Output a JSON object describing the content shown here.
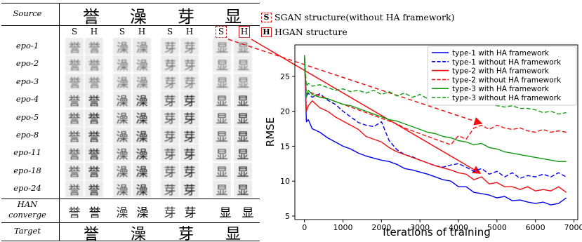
{
  "table": {
    "source_label": "Source",
    "source_chars": [
      "誉",
      "澡",
      "芽",
      "显"
    ],
    "col_heads": [
      "S",
      "H",
      "S",
      "H",
      "S",
      "H",
      "S",
      "H"
    ],
    "rows": [
      {
        "label": "epo-1"
      },
      {
        "label": "epo-2"
      },
      {
        "label": "epo-3"
      },
      {
        "label": "epo-4"
      },
      {
        "label": "epo-5"
      },
      {
        "label": "epo-8"
      },
      {
        "label": "epo-11"
      },
      {
        "label": "epo-18"
      },
      {
        "label": "epo-24"
      }
    ],
    "converge_label_1": "HAN",
    "converge_label_2": "converge",
    "target_label": "Target",
    "target_chars": [
      "誉",
      "澡",
      "芽",
      "显"
    ]
  },
  "top_legend": {
    "s_box": "S",
    "s_text": "SGAN structure(without HA framework)",
    "h_box": "H",
    "h_text": "HGAN structure"
  },
  "colors": {
    "blue": "#0000ee",
    "red": "#ee1111",
    "green": "#119911",
    "highlight": "#d01818"
  },
  "chart_data": {
    "type": "line",
    "xlabel": "Iterations of training",
    "ylabel": "RMSE",
    "xlim": [
      -250,
      7100
    ],
    "ylim": [
      4.5,
      29.5
    ],
    "xticks": [
      "0",
      "1000",
      "2000",
      "3000",
      "4000",
      "5000",
      "6000",
      "7000"
    ],
    "yticks": [
      "5",
      "10",
      "15",
      "20",
      "25"
    ],
    "legend_position": "top-right",
    "series": [
      {
        "name": "type-1 with HA framework",
        "color": "blue",
        "dash": "solid",
        "x": [
          0,
          50,
          100,
          200,
          400,
          600,
          800,
          1000,
          1200,
          1400,
          1600,
          1800,
          2000,
          2200,
          2400,
          2600,
          2800,
          3000,
          3200,
          3400,
          3600,
          3800,
          4000,
          4200,
          4400,
          4600,
          4800,
          5000,
          5200,
          5400,
          5600,
          5800,
          6000,
          6200,
          6400,
          6600,
          6800
        ],
        "y": [
          28,
          18.5,
          18.8,
          17.5,
          17.0,
          16.2,
          15.6,
          15.0,
          14.6,
          14.0,
          13.6,
          13.3,
          13.0,
          12.8,
          12.4,
          11.8,
          11.6,
          11.3,
          11.0,
          10.6,
          10.2,
          10.0,
          9.2,
          9.2,
          8.4,
          8.2,
          8.0,
          7.6,
          7.8,
          7.2,
          7.3,
          7.0,
          6.8,
          7.0,
          6.6,
          6.8,
          7.6
        ]
      },
      {
        "name": "type-1 without HA framework",
        "color": "blue",
        "dash": "dashed",
        "x": [
          0,
          50,
          100,
          200,
          400,
          600,
          800,
          1000,
          1200,
          1400,
          1600,
          1800,
          2000,
          2200,
          2400,
          2600,
          2800,
          3000,
          3200,
          3400,
          3600,
          3800,
          4000,
          4200,
          4400,
          4600,
          4800,
          5000,
          5200,
          5400,
          5600,
          5800,
          6000,
          6200,
          6400,
          6600,
          6800
        ],
        "y": [
          28,
          22.0,
          22.6,
          22.0,
          22.5,
          21.6,
          21.0,
          20.0,
          19.2,
          18.4,
          18.0,
          17.8,
          18.5,
          15.8,
          14.5,
          13.8,
          13.5,
          13.0,
          12.6,
          12.2,
          12.0,
          12.3,
          12.5,
          12.0,
          11.4,
          11.8,
          11.0,
          11.4,
          10.6,
          11.2,
          10.4,
          10.8,
          10.6,
          11.0,
          10.6,
          11.2,
          10.6
        ]
      },
      {
        "name": "type-2 with HA framework",
        "color": "red",
        "dash": "solid",
        "x": [
          0,
          50,
          100,
          200,
          400,
          600,
          800,
          1000,
          1200,
          1400,
          1600,
          1800,
          2000,
          2200,
          2400,
          2600,
          2800,
          3000,
          3200,
          3400,
          3600,
          3800,
          4000,
          4200,
          4400,
          4600,
          4800,
          5000,
          5200,
          5400,
          5600,
          5800,
          6000,
          6200,
          6400,
          6600,
          6800
        ],
        "y": [
          28,
          20.0,
          20.8,
          21.5,
          20.5,
          20.0,
          19.2,
          18.6,
          18.0,
          17.4,
          16.4,
          16.0,
          15.6,
          14.8,
          14.2,
          13.8,
          13.4,
          13.0,
          12.6,
          12.2,
          11.9,
          11.6,
          11.2,
          11.0,
          10.2,
          10.6,
          9.6,
          9.8,
          9.2,
          9.2,
          8.8,
          9.2,
          8.6,
          8.8,
          8.6,
          9.2,
          8.4
        ]
      },
      {
        "name": "type-2 without HA framework",
        "color": "red",
        "dash": "dashed",
        "x": [
          0,
          50,
          100,
          200,
          400,
          600,
          800,
          1000,
          1200,
          1400,
          1600,
          1800,
          2000,
          2200,
          2400,
          2600,
          2800,
          3000,
          3200,
          3400,
          3600,
          3800,
          4000,
          4200,
          4400,
          4600,
          4800,
          5000,
          5200,
          5400,
          5600,
          5800,
          6000,
          6200,
          6400,
          6600,
          6800
        ],
        "y": [
          28,
          22.4,
          22.8,
          22.6,
          22.2,
          21.8,
          21.4,
          21.0,
          20.6,
          20.2,
          19.8,
          19.4,
          19.0,
          18.6,
          18.2,
          17.6,
          17.2,
          16.8,
          16.4,
          16.0,
          15.6,
          15.2,
          16.5,
          16.0,
          17.6,
          18.0,
          17.4,
          18.0,
          17.6,
          17.4,
          17.6,
          17.2,
          17.0,
          17.4,
          17.0,
          17.2,
          17.0
        ]
      },
      {
        "name": "type-3 with HA framework",
        "color": "green",
        "dash": "solid",
        "x": [
          0,
          50,
          100,
          200,
          400,
          600,
          800,
          1000,
          1200,
          1400,
          1600,
          1800,
          2000,
          2200,
          2400,
          2600,
          2800,
          3000,
          3200,
          3400,
          3600,
          3800,
          4000,
          4200,
          4400,
          4600,
          4800,
          5000,
          5200,
          5400,
          5600,
          5800,
          6000,
          6200,
          6400,
          6600,
          6800
        ],
        "y": [
          28,
          22.0,
          23.0,
          22.4,
          22.0,
          21.8,
          21.4,
          21.0,
          20.8,
          20.4,
          20.0,
          19.6,
          19.2,
          18.8,
          18.6,
          18.2,
          17.8,
          17.4,
          17.0,
          16.8,
          16.4,
          16.2,
          15.8,
          15.6,
          15.2,
          15.4,
          14.8,
          14.6,
          14.2,
          14.0,
          13.8,
          13.6,
          13.4,
          13.2,
          13.0,
          12.8,
          12.8
        ]
      },
      {
        "name": "type-3 without HA framework",
        "color": "green",
        "dash": "dashed",
        "x": [
          0,
          50,
          100,
          200,
          400,
          600,
          800,
          1000,
          1200,
          1400,
          1600,
          1800,
          2000,
          2200,
          2400,
          2600,
          2800,
          3000,
          3200,
          3400,
          3600,
          3800,
          4000,
          4200,
          4400,
          4600,
          4800,
          5000,
          5200,
          5400,
          5600,
          5800,
          6000,
          6200,
          6400,
          6600,
          6800
        ],
        "y": [
          28,
          23.6,
          24.0,
          23.6,
          23.8,
          23.4,
          23.0,
          23.2,
          22.8,
          23.0,
          22.6,
          23.0,
          22.4,
          22.8,
          22.2,
          22.6,
          22.0,
          22.4,
          21.8,
          22.0,
          21.6,
          21.8,
          21.4,
          21.6,
          21.0,
          21.2,
          21.0,
          20.8,
          20.6,
          20.8,
          20.4,
          20.4,
          20.2,
          19.8,
          20.0,
          19.6,
          19.8
        ]
      }
    ]
  }
}
